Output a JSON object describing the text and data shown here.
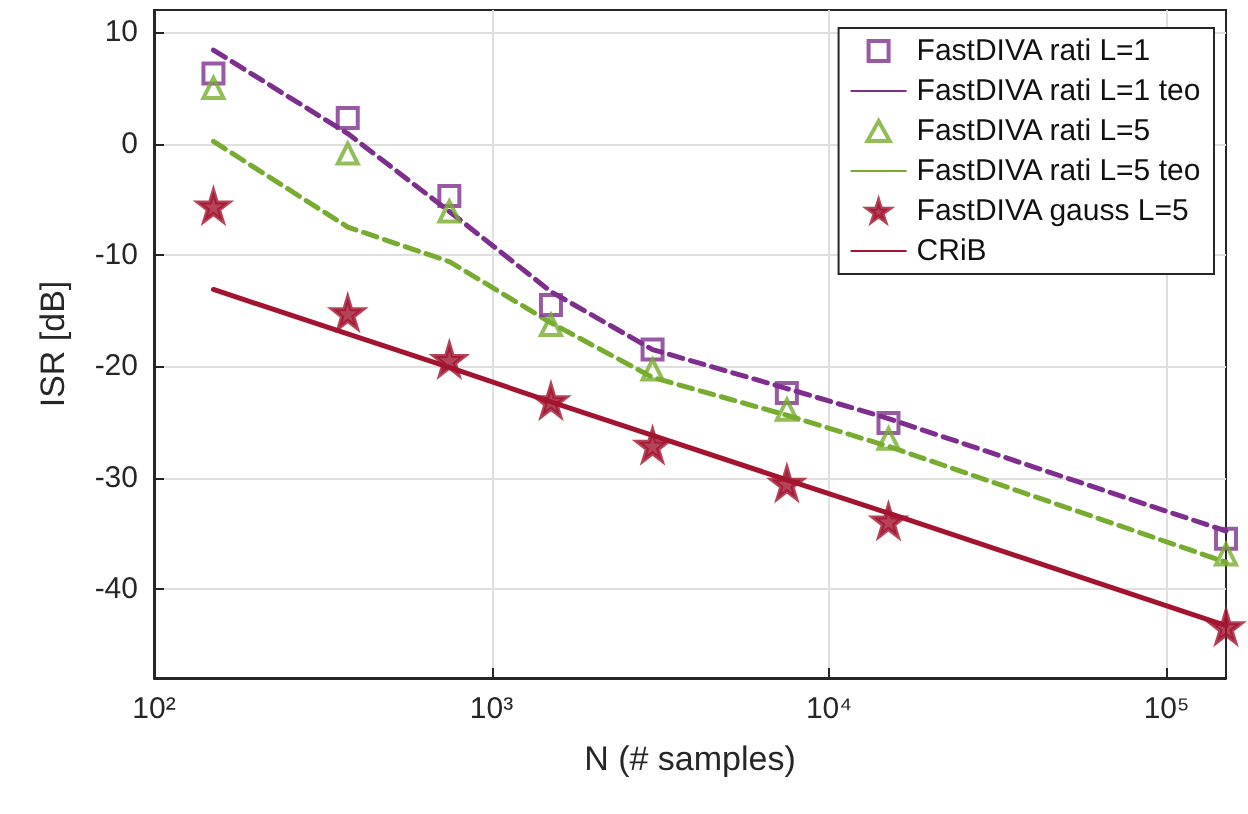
{
  "chart_data": {
    "type": "line",
    "xlabel": "N (# samples)",
    "ylabel": "ISR [dB]",
    "log": "x",
    "xlim": [
      100,
      150000
    ],
    "xticks": [
      {
        "value": 100,
        "label": "10²"
      },
      {
        "value": 1000,
        "label": "10³"
      },
      {
        "value": 10000,
        "label": "10⁴"
      },
      {
        "value": 100000,
        "label": "10⁵"
      }
    ],
    "ylim": [
      -48,
      12
    ],
    "yticks": [
      -40,
      -30,
      -20,
      -10,
      0,
      10
    ],
    "grid": true,
    "legend": "top right",
    "x": [
      150,
      375,
      750,
      1500,
      3000,
      7500,
      15000,
      150000
    ],
    "series": [
      {
        "name": "FastDIVA rati L=1",
        "type": "scatter",
        "marker": "square",
        "color": "#7e2f8e",
        "values": [
          6.3,
          2.3,
          -4.7,
          -14.5,
          -18.5,
          -22.4,
          -25.1,
          -35.5
        ]
      },
      {
        "name": "FastDIVA rati L=1 teo",
        "marker": "none",
        "line_style": "dashed",
        "color": "#7e2f8e",
        "values": [
          8.4,
          0.9,
          -6.1,
          -13.3,
          -18.5,
          -22.0,
          -24.7,
          -34.8
        ]
      },
      {
        "name": "FastDIVA rati L=5",
        "type": "scatter",
        "marker": "triangle",
        "color": "#77ac30",
        "values": [
          5.0,
          -0.9,
          -6.1,
          -16.3,
          -20.3,
          -23.9,
          -26.5,
          -36.9
        ]
      },
      {
        "name": "FastDIVA rati L=5 teo",
        "marker": "none",
        "line_style": "dashed",
        "color": "#77ac30",
        "values": [
          0.2,
          -7.5,
          -10.6,
          -16.1,
          -21.0,
          -24.4,
          -27.2,
          -37.6
        ]
      },
      {
        "name": "FastDIVA gauss L=5",
        "type": "scatter",
        "marker": "star",
        "color": "#a2142f",
        "values": [
          -5.6,
          -15.2,
          -19.4,
          -23.1,
          -27.1,
          -30.5,
          -33.9,
          -43.4
        ]
      },
      {
        "name": "CRiB",
        "marker": "none",
        "line_style": "solid",
        "color": "#a2142f",
        "values": [
          -13.1,
          -17.1,
          -20.1,
          -23.2,
          -26.2,
          -30.2,
          -33.2,
          -43.3
        ]
      }
    ]
  }
}
